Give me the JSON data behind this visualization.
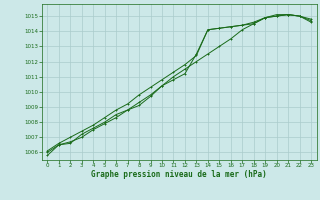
{
  "title": "Graphe pression niveau de la mer (hPa)",
  "bg_color": "#cce8e8",
  "grid_color": "#aacccc",
  "line_color": "#1a6b1a",
  "xlim": [
    -0.5,
    23.5
  ],
  "ylim": [
    1005.5,
    1015.8
  ],
  "yticks": [
    1006,
    1007,
    1008,
    1009,
    1010,
    1011,
    1012,
    1013,
    1014,
    1015
  ],
  "xticks": [
    0,
    1,
    2,
    3,
    4,
    5,
    6,
    7,
    8,
    9,
    10,
    11,
    12,
    13,
    14,
    15,
    16,
    17,
    18,
    19,
    20,
    21,
    22,
    23
  ],
  "series1": [
    1005.8,
    1006.5,
    1006.7,
    1007.0,
    1007.5,
    1007.9,
    1008.3,
    1008.8,
    1009.3,
    1009.8,
    1010.4,
    1011.0,
    1011.5,
    1012.0,
    1012.5,
    1013.0,
    1013.5,
    1014.1,
    1014.5,
    1014.9,
    1015.1,
    1015.1,
    1015.0,
    1014.7
  ],
  "series2": [
    1006.1,
    1006.6,
    1007.0,
    1007.4,
    1007.8,
    1008.3,
    1008.8,
    1009.2,
    1009.8,
    1010.3,
    1010.8,
    1011.3,
    1011.8,
    1012.4,
    1014.1,
    1014.2,
    1014.3,
    1014.4,
    1014.6,
    1014.9,
    1015.0,
    1015.1,
    1015.0,
    1014.8
  ],
  "series3": [
    1006.0,
    1006.5,
    1006.6,
    1007.2,
    1007.6,
    1008.0,
    1008.5,
    1008.8,
    1009.1,
    1009.7,
    1010.4,
    1010.8,
    1011.2,
    1012.5,
    1014.1,
    1014.2,
    1014.3,
    1014.4,
    1014.5,
    1014.9,
    1015.0,
    1015.1,
    1015.0,
    1014.6
  ]
}
